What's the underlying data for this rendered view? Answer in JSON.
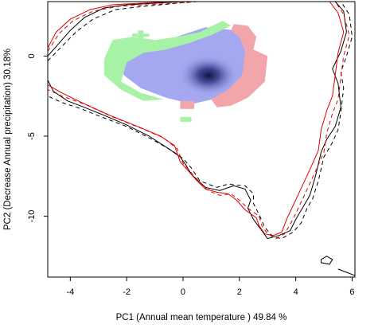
{
  "chart_data": {
    "type": "density-niche-overlap",
    "xlabel": "PC1 (Annual mean temperature ) 49.84 %",
    "ylabel": "PC2 (Decrease Annual precipitation) 30.18%",
    "xlim": [
      -4.8,
      6.1
    ],
    "ylim": [
      -13.8,
      3.4
    ],
    "x_ticks": [
      -4,
      -2,
      0,
      2,
      4,
      6
    ],
    "y_ticks": [
      0,
      -5,
      -10
    ],
    "grid": false,
    "legend": "none",
    "colors": {
      "overlap_density": "#a4a8f0",
      "density_peak": "#101540",
      "species1_only": "#a6f2a6",
      "species2_only": "#f2a6ab",
      "species1_env": "#000000",
      "species2_env": "#e00000"
    },
    "density_peak_center": [
      0.9,
      -1.2
    ],
    "regions": [
      {
        "id": "overlap",
        "color_key": "overlap_density",
        "points": [
          [
            -2.2,
            -0.4
          ],
          [
            -1.5,
            0.4
          ],
          [
            -0.4,
            1.1
          ],
          [
            0.8,
            1.8
          ],
          [
            1.9,
            1.6
          ],
          [
            2.3,
            0.6
          ],
          [
            2.2,
            -0.5
          ],
          [
            2.0,
            -1.8
          ],
          [
            1.3,
            -2.6
          ],
          [
            0.3,
            -3.0
          ],
          [
            -0.6,
            -2.6
          ],
          [
            -1.5,
            -2.0
          ],
          [
            -2.1,
            -1.2
          ]
        ]
      },
      {
        "id": "species1_only_main",
        "color_key": "species1_only",
        "points": [
          [
            -2.8,
            -0.2
          ],
          [
            -2.5,
            1.0
          ],
          [
            -1.8,
            1.2
          ],
          [
            -1.0,
            1.0
          ],
          [
            -0.2,
            1.2
          ],
          [
            0.6,
            1.5
          ],
          [
            1.4,
            2.2
          ],
          [
            1.7,
            1.9
          ],
          [
            1.0,
            1.3
          ],
          [
            0.2,
            0.8
          ],
          [
            -0.6,
            0.4
          ],
          [
            -1.4,
            0.2
          ],
          [
            -2.0,
            -0.4
          ],
          [
            -2.2,
            -1.6
          ],
          [
            -1.5,
            -2.3
          ],
          [
            -0.7,
            -2.7
          ],
          [
            -1.4,
            -2.8
          ],
          [
            -2.2,
            -2.1
          ],
          [
            -2.8,
            -1.2
          ]
        ]
      },
      {
        "id": "species1_only_dot",
        "color_key": "species1_only",
        "points": [
          [
            -0.1,
            -3.8
          ],
          [
            0.3,
            -3.8
          ],
          [
            0.3,
            -4.1
          ],
          [
            -0.1,
            -4.1
          ]
        ]
      },
      {
        "id": "species1_only_cross",
        "color_key": "species1_only",
        "points": [
          [
            -1.6,
            1.6
          ],
          [
            -1.4,
            1.6
          ],
          [
            -1.4,
            1.4
          ],
          [
            -1.2,
            1.4
          ],
          [
            -1.2,
            1.2
          ],
          [
            -1.4,
            1.2
          ],
          [
            -1.4,
            1.0
          ],
          [
            -1.6,
            1.0
          ],
          [
            -1.6,
            1.2
          ],
          [
            -1.8,
            1.2
          ],
          [
            -1.8,
            1.4
          ],
          [
            -1.6,
            1.4
          ]
        ]
      },
      {
        "id": "species2_only",
        "color_key": "species2_only",
        "points": [
          [
            1.8,
            2.0
          ],
          [
            2.3,
            1.9
          ],
          [
            2.6,
            1.2
          ],
          [
            2.5,
            0.4
          ],
          [
            3.0,
            0.0
          ],
          [
            2.9,
            -1.6
          ],
          [
            2.3,
            -2.6
          ],
          [
            1.7,
            -3.1
          ],
          [
            1.2,
            -3.2
          ],
          [
            1.0,
            -2.7
          ],
          [
            1.6,
            -2.1
          ],
          [
            2.1,
            -1.2
          ],
          [
            2.2,
            0.3
          ],
          [
            2.0,
            1.2
          ],
          [
            1.7,
            1.6
          ]
        ]
      },
      {
        "id": "species2_only_dot",
        "color_key": "species2_only",
        "points": [
          [
            -0.1,
            -2.8
          ],
          [
            0.4,
            -2.8
          ],
          [
            0.4,
            -3.3
          ],
          [
            -0.1,
            -3.3
          ]
        ]
      }
    ],
    "series": [
      {
        "id": "species1_env_solid",
        "color_key": "species1_env",
        "dash": "solid",
        "points": [
          [
            -4.8,
            0.0
          ],
          [
            -4.4,
            0.8
          ],
          [
            -4.0,
            1.6
          ],
          [
            -3.5,
            2.4
          ],
          [
            -2.8,
            3.0
          ],
          [
            -2.0,
            3.2
          ],
          [
            -1.0,
            3.3
          ],
          [
            0.0,
            3.4
          ],
          [
            0.4,
            3.4
          ],
          [
            5.4,
            3.4
          ],
          [
            5.7,
            2.8
          ],
          [
            5.8,
            1.5
          ],
          [
            5.6,
            0.3
          ],
          [
            5.3,
            -0.8
          ],
          [
            5.5,
            -1.7
          ],
          [
            5.6,
            -3.2
          ],
          [
            5.4,
            -4.4
          ],
          [
            5.1,
            -5.2
          ],
          [
            4.9,
            -6.0
          ],
          [
            4.7,
            -7.5
          ],
          [
            4.5,
            -8.7
          ],
          [
            4.3,
            -9.3
          ],
          [
            4.0,
            -10.2
          ],
          [
            3.8,
            -10.9
          ],
          [
            3.4,
            -11.2
          ],
          [
            3.0,
            -11.4
          ],
          [
            2.8,
            -10.9
          ],
          [
            2.5,
            -10.2
          ],
          [
            2.3,
            -9.5
          ],
          [
            2.4,
            -9.0
          ],
          [
            2.2,
            -8.3
          ],
          [
            1.8,
            -8.1
          ],
          [
            1.3,
            -8.4
          ],
          [
            0.8,
            -8.2
          ],
          [
            0.3,
            -7.4
          ],
          [
            0.1,
            -6.8
          ],
          [
            -0.1,
            -6.3
          ],
          [
            -0.5,
            -5.8
          ],
          [
            -1.2,
            -5.0
          ],
          [
            -2.0,
            -4.3
          ],
          [
            -2.8,
            -3.7
          ],
          [
            -3.5,
            -3.2
          ],
          [
            -4.1,
            -2.8
          ],
          [
            -4.6,
            -2.2
          ],
          [
            -4.8,
            -1.5
          ]
        ]
      },
      {
        "id": "species1_env_dashed",
        "color_key": "species1_env",
        "dash": "dashed",
        "points": [
          [
            -4.8,
            -0.3
          ],
          [
            -4.3,
            0.6
          ],
          [
            -3.8,
            1.5
          ],
          [
            -3.2,
            2.3
          ],
          [
            -2.4,
            2.9
          ],
          [
            -1.4,
            3.1
          ],
          [
            -0.2,
            3.3
          ],
          [
            0.5,
            3.4
          ],
          [
            5.6,
            3.4
          ],
          [
            5.9,
            2.6
          ],
          [
            6.0,
            1.2
          ],
          [
            5.8,
            0.0
          ],
          [
            5.6,
            -1.0
          ],
          [
            5.7,
            -2.0
          ],
          [
            5.6,
            -3.5
          ],
          [
            5.5,
            -4.6
          ],
          [
            5.3,
            -5.4
          ],
          [
            5.0,
            -6.3
          ],
          [
            4.8,
            -7.8
          ],
          [
            4.6,
            -8.9
          ],
          [
            4.4,
            -9.5
          ],
          [
            4.2,
            -10.4
          ],
          [
            3.9,
            -11.0
          ],
          [
            3.5,
            -11.4
          ],
          [
            3.2,
            -11.3
          ],
          [
            2.9,
            -10.7
          ],
          [
            2.7,
            -9.9
          ],
          [
            2.5,
            -9.2
          ],
          [
            2.5,
            -8.6
          ],
          [
            2.2,
            -8.1
          ],
          [
            1.6,
            -8.0
          ],
          [
            1.2,
            -8.2
          ],
          [
            0.6,
            -7.8
          ],
          [
            0.3,
            -7.0
          ],
          [
            0.0,
            -6.4
          ],
          [
            -0.4,
            -5.9
          ],
          [
            -1.1,
            -5.2
          ],
          [
            -2.0,
            -4.4
          ],
          [
            -2.9,
            -3.8
          ],
          [
            -3.6,
            -3.3
          ],
          [
            -4.3,
            -2.9
          ],
          [
            -4.8,
            -2.5
          ]
        ]
      },
      {
        "id": "species2_env_solid",
        "color_key": "species2_env",
        "dash": "solid",
        "points": [
          [
            -4.8,
            0.5
          ],
          [
            -4.5,
            1.5
          ],
          [
            -4.0,
            2.3
          ],
          [
            -3.3,
            2.9
          ],
          [
            -2.5,
            3.2
          ],
          [
            -1.5,
            3.3
          ],
          [
            -0.5,
            3.4
          ],
          [
            0.3,
            3.4
          ],
          [
            5.2,
            3.4
          ],
          [
            5.5,
            2.7
          ],
          [
            5.7,
            1.5
          ],
          [
            5.5,
            0.2
          ],
          [
            5.4,
            -1.2
          ],
          [
            5.3,
            -2.5
          ],
          [
            5.1,
            -3.4
          ],
          [
            4.9,
            -4.6
          ],
          [
            4.8,
            -5.9
          ],
          [
            4.5,
            -7.1
          ],
          [
            4.1,
            -8.6
          ],
          [
            3.7,
            -10.1
          ],
          [
            3.5,
            -11.0
          ],
          [
            3.2,
            -11.2
          ],
          [
            2.9,
            -11.1
          ],
          [
            2.7,
            -10.6
          ],
          [
            2.6,
            -10.1
          ],
          [
            2.2,
            -9.6
          ],
          [
            1.9,
            -9.0
          ],
          [
            1.6,
            -8.6
          ],
          [
            1.2,
            -8.5
          ],
          [
            0.8,
            -8.3
          ],
          [
            0.5,
            -7.8
          ],
          [
            0.2,
            -7.2
          ],
          [
            -0.1,
            -6.6
          ],
          [
            -0.3,
            -5.6
          ],
          [
            -0.8,
            -5.0
          ],
          [
            -1.6,
            -4.4
          ],
          [
            -2.6,
            -3.7
          ],
          [
            -3.6,
            -2.9
          ],
          [
            -4.3,
            -2.3
          ],
          [
            -4.8,
            -1.8
          ]
        ]
      },
      {
        "id": "species2_env_dashed",
        "color_key": "species2_env",
        "dash": "dashed",
        "points": [
          [
            -4.8,
            0.3
          ],
          [
            -4.4,
            1.4
          ],
          [
            -3.9,
            2.2
          ],
          [
            -3.2,
            2.8
          ],
          [
            -2.3,
            3.1
          ],
          [
            -1.3,
            3.2
          ],
          [
            -0.3,
            3.3
          ],
          [
            0.4,
            3.4
          ],
          [
            5.4,
            3.4
          ],
          [
            5.7,
            2.6
          ],
          [
            5.9,
            1.3
          ],
          [
            5.7,
            0.0
          ],
          [
            5.6,
            -1.3
          ],
          [
            5.5,
            -2.7
          ],
          [
            5.3,
            -3.6
          ],
          [
            5.1,
            -4.8
          ],
          [
            5.0,
            -6.0
          ],
          [
            4.7,
            -7.2
          ],
          [
            4.3,
            -8.7
          ],
          [
            3.9,
            -10.2
          ],
          [
            3.6,
            -11.1
          ],
          [
            3.3,
            -11.4
          ],
          [
            3.0,
            -11.1
          ],
          [
            2.8,
            -10.6
          ],
          [
            2.7,
            -10.0
          ],
          [
            2.3,
            -9.5
          ],
          [
            2.0,
            -9.0
          ],
          [
            1.7,
            -8.6
          ],
          [
            1.3,
            -8.7
          ],
          [
            0.9,
            -8.4
          ],
          [
            0.6,
            -7.9
          ],
          [
            0.3,
            -7.3
          ],
          [
            0.0,
            -6.7
          ],
          [
            -0.2,
            -5.8
          ],
          [
            -0.7,
            -5.1
          ],
          [
            -1.5,
            -4.5
          ],
          [
            -2.5,
            -3.8
          ],
          [
            -3.5,
            -3.0
          ],
          [
            -4.3,
            -2.5
          ],
          [
            -4.8,
            -2.1
          ]
        ]
      },
      {
        "id": "species1_env_island",
        "color_key": "species1_env",
        "dash": "solid",
        "points": [
          [
            4.9,
            -12.7
          ],
          [
            5.1,
            -12.5
          ],
          [
            5.3,
            -12.7
          ],
          [
            5.2,
            -13.0
          ],
          [
            4.9,
            -12.9
          ],
          [
            4.9,
            -12.7
          ]
        ]
      },
      {
        "id": "species1_env_corner",
        "color_key": "species1_env",
        "dash": "solid",
        "points": [
          [
            5.5,
            -13.3
          ],
          [
            5.8,
            -13.5
          ],
          [
            6.1,
            -13.7
          ]
        ]
      }
    ]
  }
}
